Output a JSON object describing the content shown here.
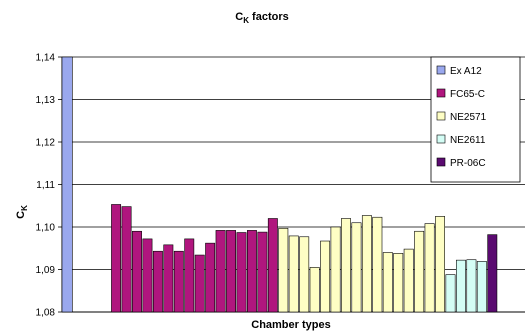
{
  "chart_data": {
    "type": "bar",
    "title": "C",
    "title_sub": "K",
    "title_rest": " factors",
    "xlabel": "Chamber types",
    "ylabel": "C",
    "ylabel_sub": "K",
    "ylim": [
      1.08,
      1.14
    ],
    "yticks": [
      "1,08",
      "1,09",
      "1,10",
      "1,11",
      "1,12",
      "1,13",
      "1,14"
    ],
    "ytick_values": [
      1.08,
      1.09,
      1.1,
      1.11,
      1.12,
      1.13,
      1.14
    ],
    "grid": true,
    "legend_position": "top-right",
    "series": [
      {
        "name": "Ex A12",
        "color": "#9aa8ee",
        "values": [
          1.14
        ]
      },
      {
        "name": "FC65-C",
        "color": "#b0167e",
        "values": [
          1.1053,
          1.1048,
          1.099,
          1.0972,
          1.0943,
          1.0958,
          1.0943,
          1.0972,
          1.0934,
          1.0962,
          1.0992,
          1.0992,
          1.0987,
          1.0992,
          1.0988,
          1.102
        ]
      },
      {
        "name": "NE2571",
        "color": "#fefec4",
        "values": [
          1.0997,
          1.0979,
          1.0977,
          1.0905,
          1.0967,
          1.1,
          1.102,
          1.101,
          1.1027,
          1.1023,
          1.094,
          1.0938,
          1.0948,
          1.099,
          1.1008,
          1.1025
        ]
      },
      {
        "name": "NE2611",
        "color": "#d4fdf5",
        "values": [
          1.0888,
          1.0922,
          1.0923,
          1.0919
        ]
      },
      {
        "name": "PR-06C",
        "color": "#5a0a70",
        "values": [
          1.0982
        ]
      }
    ]
  }
}
